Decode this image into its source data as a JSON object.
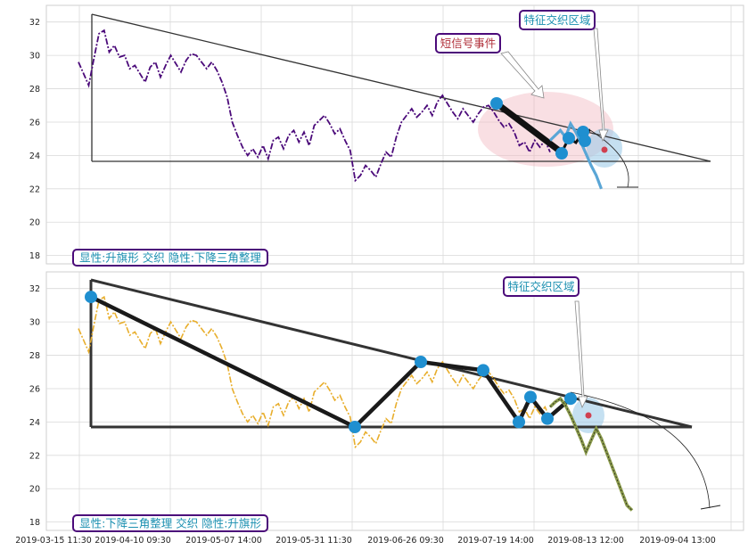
{
  "chart_data": [
    {
      "type": "line",
      "panel": "top",
      "ylim": [
        17.5,
        33
      ],
      "yticks": [
        18,
        20,
        22,
        24,
        26,
        28,
        30,
        32
      ],
      "series": [
        {
          "values": [
            29.6,
            28.9,
            28.2,
            29.8,
            31.3,
            31.5,
            30.2,
            30.6,
            29.9,
            30.0,
            29.2,
            29.4,
            28.9,
            28.4,
            29.3,
            29.6,
            28.7,
            29.4,
            30.0,
            29.5,
            29.0,
            29.7,
            30.1,
            30.0,
            29.6,
            29.2,
            29.6,
            29.1,
            28.4,
            27.5,
            26.0,
            25.2,
            24.5,
            24.0,
            24.4,
            23.9,
            24.6,
            23.8,
            24.9,
            25.1,
            24.4,
            25.2,
            25.5,
            24.8,
            25.4,
            24.6,
            25.8,
            26.1,
            26.4,
            25.9,
            25.3,
            25.6,
            24.9,
            24.3,
            22.5,
            22.8,
            23.4,
            23.1,
            22.7,
            23.5,
            24.2,
            23.9,
            25.1,
            26.0,
            26.4,
            26.8,
            26.3,
            26.6,
            27.0,
            26.4,
            27.2,
            27.6,
            27.1,
            26.6,
            26.2,
            26.8,
            26.4,
            26.0,
            26.5,
            26.9,
            27.0,
            26.6,
            26.1,
            25.7,
            25.9,
            25.4,
            24.6,
            24.8,
            24.2,
            24.9,
            24.5,
            24.9,
            24.2
          ]
        },
        {
          "values": [
            24.9,
            25.2,
            25.5,
            25.1,
            25.9,
            25.4,
            24.8,
            24.1,
            23.4,
            22.8,
            22.0
          ]
        }
      ],
      "annotations": [
        {
          "label": "短信号事件",
          "color": "#b0303a"
        },
        {
          "label": "特征交织区域",
          "color": "#1a8fb0"
        }
      ],
      "pattern_label": "显性:升旗形 交织 隐性:下降三角整理"
    },
    {
      "type": "line",
      "panel": "bottom",
      "ylim": [
        17.5,
        33
      ],
      "yticks": [
        18,
        20,
        22,
        24,
        26,
        28,
        30,
        32
      ],
      "x_tick_labels": [
        "2019-03-15 11:30",
        "2019-04-10 09:30",
        "2019-05-07 14:00",
        "2019-05-31 11:30",
        "2019-06-26 09:30",
        "2019-07-19 14:00",
        "2019-08-13 12:00",
        "2019-09-04 13:00"
      ],
      "series": [
        {
          "values": [
            29.6,
            28.9,
            28.2,
            29.8,
            31.3,
            31.5,
            30.2,
            30.6,
            29.9,
            30.0,
            29.2,
            29.4,
            28.9,
            28.4,
            29.3,
            29.6,
            28.7,
            29.4,
            30.0,
            29.5,
            29.0,
            29.7,
            30.1,
            30.0,
            29.6,
            29.2,
            29.6,
            29.1,
            28.4,
            27.5,
            26.0,
            25.2,
            24.5,
            24.0,
            24.4,
            23.9,
            24.6,
            23.8,
            24.9,
            25.1,
            24.4,
            25.2,
            25.5,
            24.8,
            25.4,
            24.6,
            25.8,
            26.1,
            26.4,
            25.9,
            25.3,
            25.6,
            24.9,
            24.3,
            22.5,
            22.8,
            23.4,
            23.1,
            22.7,
            23.5,
            24.2,
            23.9,
            25.1,
            26.0,
            26.4,
            26.8,
            26.3,
            26.6,
            27.0,
            26.4,
            27.2,
            27.6,
            27.1,
            26.6,
            26.2,
            26.8,
            26.4,
            26.0,
            26.5,
            26.9,
            27.0,
            26.6,
            26.1,
            25.7,
            25.9,
            25.4,
            24.6,
            24.8,
            24.2,
            24.9,
            24.5,
            24.9,
            24.2
          ]
        },
        {
          "values": [
            24.9,
            25.2,
            25.4,
            25.0,
            24.4,
            23.7,
            23.0,
            22.2,
            22.9,
            23.6,
            23.0,
            22.2,
            21.4,
            20.6,
            19.8,
            19.0,
            18.7
          ]
        }
      ],
      "pivots": [
        31.5,
        23.7,
        27.6,
        27.1,
        24.0,
        25.5,
        24.2,
        25.4
      ],
      "annotations": [
        {
          "label": "特征交织区域",
          "color": "#1a8fb0"
        }
      ],
      "pattern_label": "显性:下降三角整理 交织 隐性:升旗形"
    }
  ],
  "colors": {
    "top_series": "#4b0a7a",
    "bottom_series": "#e8ae2c",
    "pivot": "#1f8fd0",
    "label_text": "#1a8fb0",
    "label_border": "#4b0a7a",
    "forecast": "#5aa6d6",
    "forecast_olive": "#8a9a4a"
  }
}
